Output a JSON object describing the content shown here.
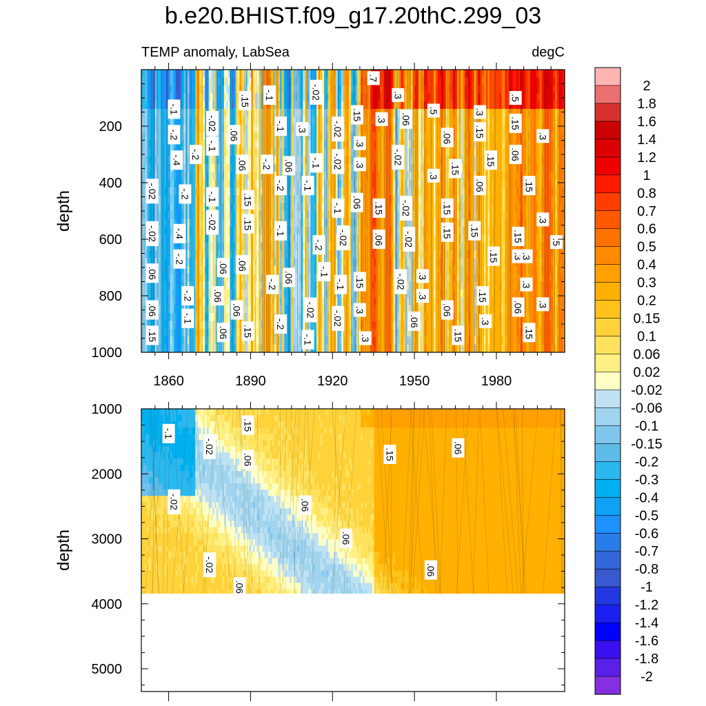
{
  "chart_data": {
    "type": "heatmap",
    "title": "b.e20.BHIST.f09_g17.20thC.299_03",
    "subtitle_left": "TEMP anomaly, LabSea",
    "subtitle_right": "degC",
    "xlabel": "",
    "ylabel": "depth",
    "x_range": [
      1850,
      2005
    ],
    "x_ticks": [
      1860,
      1890,
      1920,
      1950,
      1980
    ],
    "panels": [
      {
        "name": "upper",
        "ylim": [
          0,
          1000
        ],
        "y_ticks": [
          200,
          400,
          600,
          800,
          1000
        ],
        "contour_labels": [
          {
            "year": 1854,
            "depth": 430,
            "text": "-.02"
          },
          {
            "year": 1854,
            "depth": 580,
            "text": "-.02"
          },
          {
            "year": 1854,
            "depth": 720,
            "text": ".06"
          },
          {
            "year": 1854,
            "depth": 850,
            "text": ".06"
          },
          {
            "year": 1854,
            "depth": 940,
            "text": ".15"
          },
          {
            "year": 1862,
            "depth": 140,
            "text": "-.1"
          },
          {
            "year": 1862,
            "depth": 230,
            "text": "-.2"
          },
          {
            "year": 1863,
            "depth": 320,
            "text": "-.4"
          },
          {
            "year": 1864,
            "depth": 580,
            "text": "-.4"
          },
          {
            "year": 1864,
            "depth": 670,
            "text": "-.2"
          },
          {
            "year": 1866,
            "depth": 440,
            "text": "-.2"
          },
          {
            "year": 1867,
            "depth": 800,
            "text": "-.2"
          },
          {
            "year": 1867,
            "depth": 880,
            "text": "-.1"
          },
          {
            "year": 1870,
            "depth": 300,
            "text": "-.2"
          },
          {
            "year": 1876,
            "depth": 190,
            "text": "-.02"
          },
          {
            "year": 1876,
            "depth": 270,
            "text": "-.1"
          },
          {
            "year": 1876,
            "depth": 450,
            "text": "-.1"
          },
          {
            "year": 1876,
            "depth": 540,
            "text": "-.02"
          },
          {
            "year": 1878,
            "depth": 800,
            "text": ".06"
          },
          {
            "year": 1880,
            "depth": 700,
            "text": ".06"
          },
          {
            "year": 1880,
            "depth": 930,
            "text": ".06"
          },
          {
            "year": 1884,
            "depth": 230,
            "text": ".06"
          },
          {
            "year": 1885,
            "depth": 850,
            "text": ".06"
          },
          {
            "year": 1887,
            "depth": 335,
            "text": ".06"
          },
          {
            "year": 1887,
            "depth": 690,
            "text": ".06"
          },
          {
            "year": 1888,
            "depth": 110,
            "text": ".15"
          },
          {
            "year": 1889,
            "depth": 460,
            "text": ".15"
          },
          {
            "year": 1889,
            "depth": 545,
            "text": ".15"
          },
          {
            "year": 1889,
            "depth": 925,
            "text": ".15"
          },
          {
            "year": 1897,
            "depth": 90,
            "text": "-.1"
          },
          {
            "year": 1896,
            "depth": 335,
            "text": "-.2"
          },
          {
            "year": 1898,
            "depth": 760,
            "text": "-.2"
          },
          {
            "year": 1901,
            "depth": 200,
            "text": "-.1"
          },
          {
            "year": 1901,
            "depth": 410,
            "text": "-.2"
          },
          {
            "year": 1901,
            "depth": 570,
            "text": "-.1"
          },
          {
            "year": 1901,
            "depth": 900,
            "text": "-.2"
          },
          {
            "year": 1904,
            "depth": 340,
            "text": ".06"
          },
          {
            "year": 1904,
            "depth": 735,
            "text": ".06"
          },
          {
            "year": 1909,
            "depth": 210,
            "text": ".3"
          },
          {
            "year": 1911,
            "depth": 410,
            "text": "-.1"
          },
          {
            "year": 1914,
            "depth": 330,
            "text": "-.1"
          },
          {
            "year": 1915,
            "depth": 620,
            "text": "-.2"
          },
          {
            "year": 1914,
            "depth": 80,
            "text": "-.02"
          },
          {
            "year": 1912,
            "depth": 850,
            "text": "-.02"
          },
          {
            "year": 1911,
            "depth": 955,
            "text": "-.1"
          },
          {
            "year": 1917,
            "depth": 715,
            "text": "-.1"
          },
          {
            "year": 1922,
            "depth": 210,
            "text": "-.02"
          },
          {
            "year": 1922,
            "depth": 325,
            "text": "-.02"
          },
          {
            "year": 1922,
            "depth": 490,
            "text": "-.1"
          },
          {
            "year": 1924,
            "depth": 595,
            "text": "-.02"
          },
          {
            "year": 1922,
            "depth": 880,
            "text": "-.02"
          },
          {
            "year": 1923,
            "depth": 760,
            "text": "-.1"
          },
          {
            "year": 1929,
            "depth": 160,
            "text": ".15"
          },
          {
            "year": 1929,
            "depth": 470,
            "text": ".06"
          },
          {
            "year": 1930,
            "depth": 260,
            "text": ".3"
          },
          {
            "year": 1930,
            "depth": 335,
            "text": ".3"
          },
          {
            "year": 1930,
            "depth": 750,
            "text": ".15"
          },
          {
            "year": 1930,
            "depth": 850,
            "text": ".3"
          },
          {
            "year": 1932,
            "depth": 950,
            "text": ".3"
          },
          {
            "year": 1935,
            "depth": 30,
            "text": ".7"
          },
          {
            "year": 1937,
            "depth": 490,
            "text": ".15"
          },
          {
            "year": 1937,
            "depth": 600,
            "text": ".06"
          },
          {
            "year": 1938,
            "depth": 175,
            "text": ".3"
          },
          {
            "year": 1944,
            "depth": 90,
            "text": ".3"
          },
          {
            "year": 1944,
            "depth": 310,
            "text": "-.02"
          },
          {
            "year": 1945,
            "depth": 750,
            "text": "-.02"
          },
          {
            "year": 1947,
            "depth": 175,
            "text": ".06"
          },
          {
            "year": 1947,
            "depth": 490,
            "text": "-.02"
          },
          {
            "year": 1948,
            "depth": 600,
            "text": "-.02"
          },
          {
            "year": 1950,
            "depth": 890,
            "text": ".06"
          },
          {
            "year": 1953,
            "depth": 730,
            "text": ".3"
          },
          {
            "year": 1953,
            "depth": 800,
            "text": ".3"
          },
          {
            "year": 1957,
            "depth": 145,
            "text": ".5"
          },
          {
            "year": 1957,
            "depth": 375,
            "text": ".3"
          },
          {
            "year": 1962,
            "depth": 490,
            "text": ".15"
          },
          {
            "year": 1962,
            "depth": 575,
            "text": ".15"
          },
          {
            "year": 1962,
            "depth": 850,
            "text": ".06"
          },
          {
            "year": 1962,
            "depth": 240,
            "text": ".06"
          },
          {
            "year": 1965,
            "depth": 350,
            "text": ".15"
          },
          {
            "year": 1966,
            "depth": 940,
            "text": ".15"
          },
          {
            "year": 1972,
            "depth": 570,
            "text": ".15"
          },
          {
            "year": 1974,
            "depth": 150,
            "text": ".3"
          },
          {
            "year": 1974,
            "depth": 410,
            "text": ".06"
          },
          {
            "year": 1974,
            "depth": 220,
            "text": ".15"
          },
          {
            "year": 1975,
            "depth": 800,
            "text": ".15"
          },
          {
            "year": 1976,
            "depth": 890,
            "text": ".3"
          },
          {
            "year": 1978,
            "depth": 320,
            "text": ".15"
          },
          {
            "year": 1979,
            "depth": 660,
            "text": ".15"
          },
          {
            "year": 1987,
            "depth": 100,
            "text": ".5"
          },
          {
            "year": 1987,
            "depth": 190,
            "text": ".15"
          },
          {
            "year": 1987,
            "depth": 300,
            "text": ".06"
          },
          {
            "year": 1988,
            "depth": 590,
            "text": ".15"
          },
          {
            "year": 1988,
            "depth": 660,
            "text": ".3"
          },
          {
            "year": 1988,
            "depth": 840,
            "text": ".06"
          },
          {
            "year": 1991,
            "depth": 660,
            "text": ".3"
          },
          {
            "year": 1991,
            "depth": 760,
            "text": ".3"
          },
          {
            "year": 1992,
            "depth": 410,
            "text": ".15"
          },
          {
            "year": 1992,
            "depth": 930,
            "text": ".15"
          },
          {
            "year": 1997,
            "depth": 235,
            "text": ".3"
          },
          {
            "year": 1997,
            "depth": 530,
            "text": ".3"
          },
          {
            "year": 1997,
            "depth": 830,
            "text": ".3"
          },
          {
            "year": 2002,
            "depth": 610,
            "text": ".5"
          }
        ]
      },
      {
        "name": "lower",
        "ylim": [
          1000,
          5350
        ],
        "y_ticks": [
          1000,
          2000,
          3000,
          4000,
          5000
        ],
        "data_bottom_depth": 3870,
        "contour_labels": [
          {
            "year": 1860,
            "depth": 1380,
            "text": "-.1"
          },
          {
            "year": 1875,
            "depth": 1580,
            "text": "-.02"
          },
          {
            "year": 1889,
            "depth": 1250,
            "text": ".15"
          },
          {
            "year": 1889,
            "depth": 1780,
            "text": ".06"
          },
          {
            "year": 1862,
            "depth": 2430,
            "text": "-.02"
          },
          {
            "year": 1910,
            "depth": 2480,
            "text": ".06"
          },
          {
            "year": 1925,
            "depth": 2990,
            "text": ".06"
          },
          {
            "year": 1875,
            "depth": 3400,
            "text": "-.02"
          },
          {
            "year": 1886,
            "depth": 3740,
            "text": ".06"
          },
          {
            "year": 1941,
            "depth": 1700,
            "text": ".15"
          },
          {
            "year": 1966,
            "depth": 1600,
            "text": ".06"
          },
          {
            "year": 1956,
            "depth": 3480,
            "text": ".06"
          }
        ]
      }
    ],
    "colorbar": {
      "levels": [
        "2",
        "1.8",
        "1.6",
        "1.4",
        "1.2",
        "1",
        "0.8",
        "0.7",
        "0.6",
        "0.5",
        "0.4",
        "0.3",
        "0.2",
        "0.15",
        "0.1",
        "0.06",
        "0.02",
        "-0.02",
        "-0.06",
        "-0.1",
        "-0.15",
        "-0.2",
        "-0.3",
        "-0.4",
        "-0.5",
        "-0.6",
        "-0.7",
        "-0.8",
        "-1",
        "-1.2",
        "-1.4",
        "-1.6",
        "-1.8",
        "-2"
      ],
      "colors": [
        "#ffb4b4",
        "#ec7070",
        "#d83030",
        "#cc0000",
        "#dd0000",
        "#ee0000",
        "#ff1a00",
        "#ff3d00",
        "#ff5a00",
        "#ff7200",
        "#ff8a00",
        "#ffa000",
        "#ffb000",
        "#ffc21a",
        "#ffd23a",
        "#ffe25e",
        "#fff085",
        "#ffffc8",
        "#bfe2f2",
        "#a0d4ef",
        "#80c6ec",
        "#5ebbea",
        "#2bb8ee",
        "#00b0f0",
        "#0fa1f5",
        "#1e90ff",
        "#2a7de8",
        "#3468d8",
        "#3a58d0",
        "#2338e0",
        "#1a20f0",
        "#0000ff",
        "#3a10f0",
        "#5a20e8",
        "#8530e0"
      ]
    }
  }
}
